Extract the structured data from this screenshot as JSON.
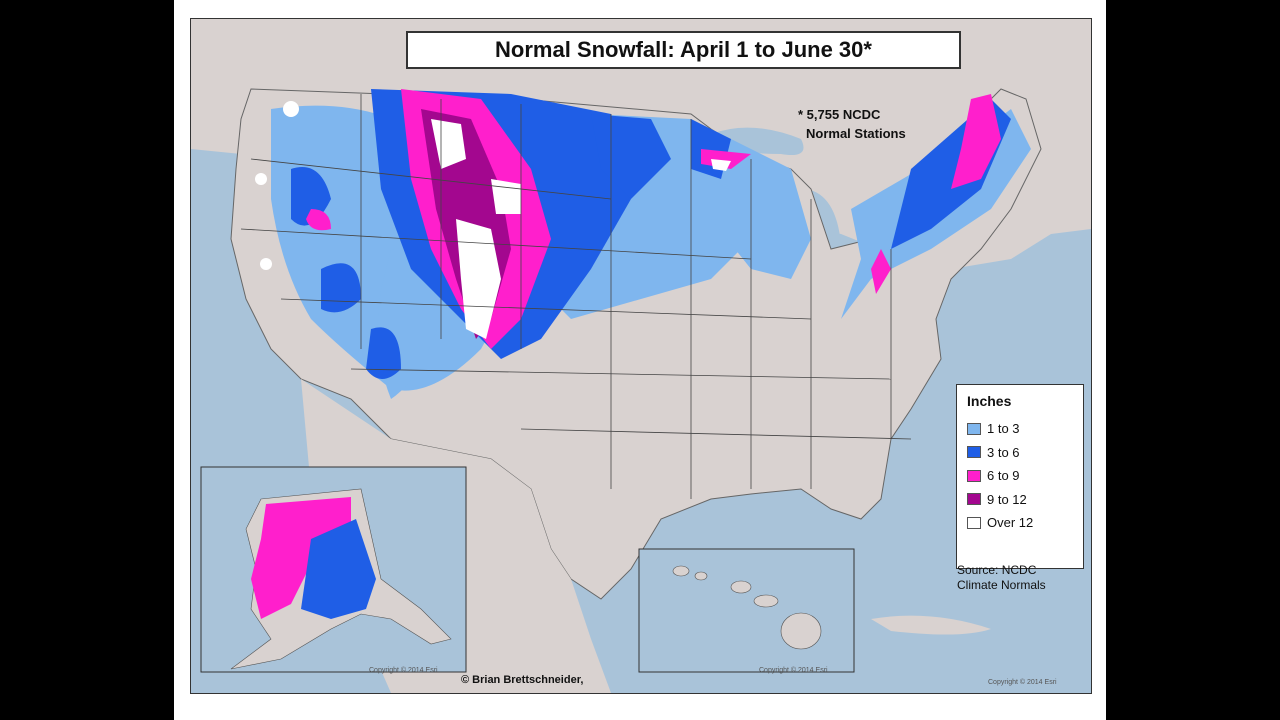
{
  "title": "Normal Snowfall: April 1 to June 30*",
  "footnote": [
    "* 5,755 NCDC",
    "Normal Stations"
  ],
  "legend": {
    "title": "Inches",
    "items": [
      {
        "label": "1 to 3",
        "color": "#7fb6ee"
      },
      {
        "label": "3 to 6",
        "color": "#1f5ee6"
      },
      {
        "label": "6 to 9",
        "color": "#ff1fcc"
      },
      {
        "label": "9 to 12",
        "color": "#a3078f"
      },
      {
        "label": "Over 12",
        "color": "#ffffff"
      }
    ]
  },
  "source": [
    "Source: NCDC",
    "Climate Normals"
  ],
  "credit": "© Brian Brettschneider,",
  "copyrights": [
    "Copyright © 2014 Esri",
    "Copyright © 2014 Esri",
    "Copyright © 2014 Esri"
  ],
  "colors": {
    "water": "#a9c3d9",
    "land": "#d9d2d0",
    "state_border": "#444444"
  }
}
